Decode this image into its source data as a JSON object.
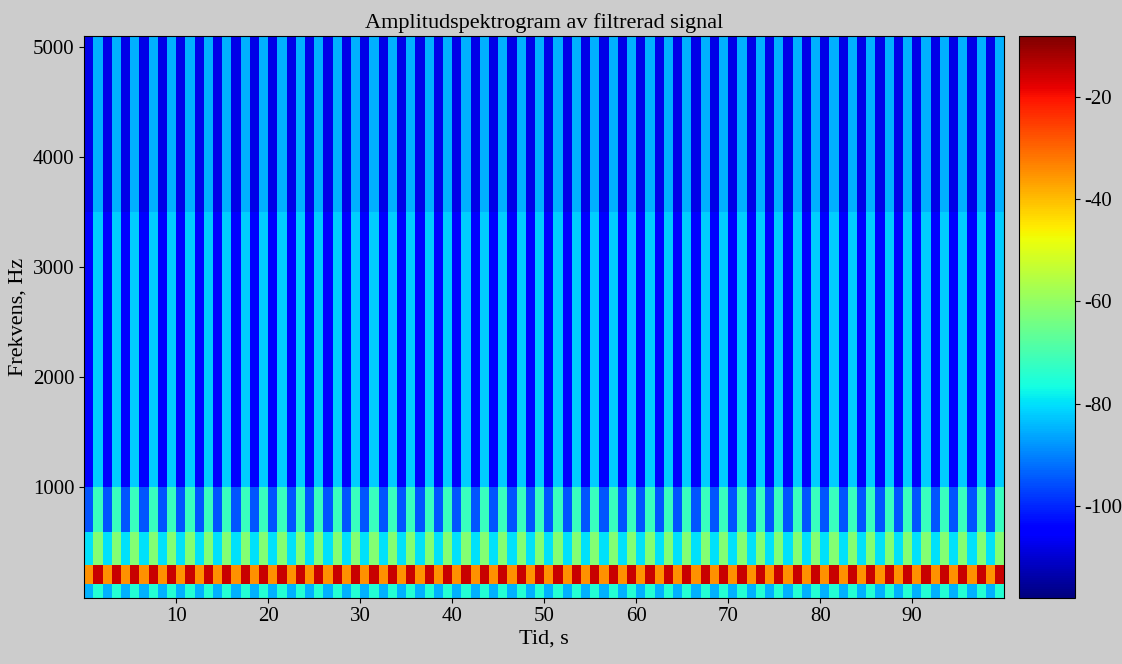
{
  "chart_data": {
    "type": "heatmap",
    "title": "Amplitudspektrogram av filtrerad signal",
    "xlabel": "Tid, s",
    "ylabel": "Frekvens, Hz",
    "xlim": [
      0,
      100
    ],
    "xticks": [
      10,
      20,
      30,
      40,
      50,
      60,
      70,
      80,
      90
    ],
    "ylim": [
      0,
      5100
    ],
    "yticks": [
      1000,
      2000,
      3000,
      4000,
      5000
    ],
    "clim": [
      -118,
      -8
    ],
    "cticks": [
      -100,
      -80,
      -60,
      -40,
      -20
    ],
    "x_edges": [
      0,
      1,
      2,
      3,
      4,
      5,
      6,
      7,
      8,
      9,
      10,
      11,
      12,
      13,
      14,
      15,
      16,
      17,
      18,
      19,
      20,
      21,
      22,
      23,
      24,
      25,
      26,
      27,
      28,
      29,
      30,
      31,
      32,
      33,
      34,
      35,
      36,
      37,
      38,
      39,
      40,
      41,
      42,
      43,
      44,
      45,
      46,
      47,
      48,
      49,
      50,
      51,
      52,
      53,
      54,
      55,
      56,
      57,
      58,
      59,
      60,
      61,
      62,
      63,
      64,
      65,
      66,
      67,
      68,
      69,
      70,
      71,
      72,
      73,
      74,
      75,
      76,
      77,
      78,
      79,
      80,
      81,
      82,
      83,
      84,
      85,
      86,
      87,
      88,
      89,
      90,
      91,
      92,
      93,
      94,
      95,
      96,
      97,
      98,
      99,
      100
    ],
    "y_edges": [
      0,
      125,
      300,
      600,
      1000,
      1500,
      2000,
      2500,
      3000,
      3500,
      4000,
      4500,
      5000,
      5100
    ],
    "cells": [
      [
        -85,
        -75,
        -85,
        -75,
        -85,
        -75,
        -85,
        -75,
        -85,
        -75,
        -85,
        -75,
        -85,
        -75,
        -85,
        -75,
        -85,
        -75,
        -85,
        -75,
        -85,
        -75,
        -85,
        -75,
        -85,
        -75,
        -85,
        -75,
        -85,
        -75,
        -85,
        -75,
        -85,
        -75,
        -85,
        -75,
        -85,
        -75,
        -85,
        -75,
        -85,
        -75,
        -85,
        -75,
        -85,
        -75,
        -85,
        -75,
        -85,
        -75,
        -85,
        -75,
        -85,
        -75,
        -85,
        -75,
        -85,
        -75,
        -85,
        -75,
        -85,
        -75,
        -85,
        -75,
        -85,
        -75,
        -85,
        -75,
        -85,
        -75,
        -85,
        -75,
        -85,
        -75,
        -85,
        -75,
        -85,
        -75,
        -85,
        -75,
        -85,
        -75,
        -85,
        -75,
        -85,
        -75,
        -85,
        -75,
        -85,
        -75,
        -85,
        -75,
        -85,
        -75,
        -85,
        -75,
        -85,
        -75,
        -85,
        -75
      ],
      [
        -35,
        -15,
        -35,
        -15,
        -35,
        -15,
        -35,
        -15,
        -35,
        -15,
        -35,
        -15,
        -35,
        -15,
        -35,
        -15,
        -35,
        -15,
        -35,
        -15,
        -35,
        -15,
        -35,
        -15,
        -35,
        -15,
        -35,
        -15,
        -35,
        -15,
        -35,
        -15,
        -35,
        -15,
        -35,
        -15,
        -35,
        -15,
        -35,
        -15,
        -35,
        -15,
        -35,
        -15,
        -35,
        -15,
        -35,
        -15,
        -35,
        -15,
        -35,
        -15,
        -35,
        -15,
        -35,
        -15,
        -35,
        -15,
        -35,
        -15,
        -35,
        -15,
        -35,
        -15,
        -35,
        -15,
        -35,
        -15,
        -35,
        -15,
        -35,
        -15,
        -35,
        -15,
        -35,
        -15,
        -35,
        -15,
        -35,
        -15,
        -35,
        -15,
        -35,
        -15,
        -35,
        -15,
        -35,
        -15,
        -35,
        -15,
        -35,
        -15,
        -35,
        -15,
        -35,
        -15,
        -35,
        -15,
        -35,
        -15
      ],
      [
        -80,
        -62,
        -80,
        -62,
        -80,
        -62,
        -80,
        -62,
        -80,
        -62,
        -80,
        -62,
        -80,
        -62,
        -80,
        -62,
        -80,
        -62,
        -80,
        -62,
        -80,
        -62,
        -80,
        -62,
        -80,
        -62,
        -80,
        -62,
        -80,
        -62,
        -80,
        -62,
        -80,
        -62,
        -80,
        -62,
        -80,
        -62,
        -80,
        -62,
        -80,
        -62,
        -80,
        -62,
        -80,
        -62,
        -80,
        -62,
        -80,
        -62,
        -80,
        -62,
        -80,
        -62,
        -80,
        -62,
        -80,
        -62,
        -80,
        -62,
        -80,
        -62,
        -80,
        -62,
        -80,
        -62,
        -80,
        -62,
        -80,
        -62,
        -80,
        -62,
        -80,
        -62,
        -80,
        -62,
        -80,
        -62,
        -80,
        -62,
        -80,
        -62,
        -80,
        -62,
        -80,
        -62,
        -80,
        -62,
        -80,
        -62,
        -80,
        -62,
        -80,
        -62,
        -80,
        -62,
        -80,
        -62,
        -80,
        -62
      ],
      [
        -95,
        -72,
        -95,
        -72,
        -95,
        -72,
        -95,
        -72,
        -95,
        -72,
        -95,
        -72,
        -95,
        -72,
        -95,
        -72,
        -95,
        -72,
        -95,
        -72,
        -95,
        -72,
        -95,
        -72,
        -95,
        -72,
        -95,
        -72,
        -95,
        -72,
        -95,
        -72,
        -95,
        -72,
        -95,
        -72,
        -95,
        -72,
        -95,
        -72,
        -95,
        -72,
        -95,
        -72,
        -95,
        -72,
        -95,
        -72,
        -95,
        -72,
        -95,
        -72,
        -95,
        -72,
        -95,
        -72,
        -95,
        -72,
        -95,
        -72,
        -95,
        -72,
        -95,
        -72,
        -95,
        -72,
        -95,
        -72,
        -95,
        -72,
        -95,
        -72,
        -95,
        -72,
        -95,
        -72,
        -95,
        -72,
        -95,
        -72,
        -95,
        -72,
        -95,
        -72,
        -95,
        -72,
        -95,
        -72,
        -95,
        -72,
        -95,
        -72,
        -95,
        -72,
        -95,
        -72,
        -95,
        -72,
        -95,
        -72
      ],
      [
        -105,
        -82,
        -105,
        -82,
        -105,
        -82,
        -105,
        -82,
        -105,
        -82,
        -105,
        -82,
        -105,
        -82,
        -105,
        -82,
        -105,
        -82,
        -105,
        -82,
        -105,
        -82,
        -105,
        -82,
        -105,
        -82,
        -105,
        -82,
        -105,
        -82,
        -105,
        -82,
        -105,
        -82,
        -105,
        -82,
        -105,
        -82,
        -105,
        -82,
        -105,
        -82,
        -105,
        -82,
        -105,
        -82,
        -105,
        -82,
        -105,
        -82,
        -105,
        -82,
        -105,
        -82,
        -105,
        -82,
        -105,
        -82,
        -105,
        -82,
        -105,
        -82,
        -105,
        -82,
        -105,
        -82,
        -105,
        -82,
        -105,
        -82,
        -105,
        -82,
        -105,
        -82,
        -105,
        -82,
        -105,
        -82,
        -105,
        -82,
        -105,
        -82,
        -105,
        -82,
        -105,
        -82,
        -105,
        -82,
        -105,
        -82,
        -105,
        -82,
        -105,
        -82,
        -105,
        -82,
        -105,
        -82,
        -105,
        -82
      ],
      [
        -105,
        -82,
        -105,
        -82,
        -105,
        -82,
        -105,
        -82,
        -105,
        -82,
        -105,
        -82,
        -105,
        -82,
        -105,
        -82,
        -105,
        -82,
        -105,
        -82,
        -105,
        -82,
        -105,
        -82,
        -105,
        -82,
        -105,
        -82,
        -105,
        -82,
        -105,
        -82,
        -105,
        -82,
        -105,
        -82,
        -105,
        -82,
        -105,
        -82,
        -105,
        -82,
        -105,
        -82,
        -105,
        -82,
        -105,
        -82,
        -105,
        -82,
        -105,
        -82,
        -105,
        -82,
        -105,
        -82,
        -105,
        -82,
        -105,
        -82,
        -105,
        -82,
        -105,
        -82,
        -105,
        -82,
        -105,
        -82,
        -105,
        -82,
        -105,
        -82,
        -105,
        -82,
        -105,
        -82,
        -105,
        -82,
        -105,
        -82,
        -105,
        -82,
        -105,
        -82,
        -105,
        -82,
        -105,
        -82,
        -105,
        -82,
        -105,
        -82,
        -105,
        -82,
        -105,
        -82,
        -105,
        -82,
        -105,
        -82
      ],
      [
        -105,
        -82,
        -105,
        -82,
        -105,
        -82,
        -105,
        -82,
        -105,
        -82,
        -105,
        -82,
        -105,
        -82,
        -105,
        -82,
        -105,
        -82,
        -105,
        -82,
        -105,
        -82,
        -105,
        -82,
        -105,
        -82,
        -105,
        -82,
        -105,
        -82,
        -105,
        -82,
        -105,
        -82,
        -105,
        -82,
        -105,
        -82,
        -105,
        -82,
        -105,
        -82,
        -105,
        -82,
        -105,
        -82,
        -105,
        -82,
        -105,
        -82,
        -105,
        -82,
        -105,
        -82,
        -105,
        -82,
        -105,
        -82,
        -105,
        -82,
        -105,
        -82,
        -105,
        -82,
        -105,
        -82,
        -105,
        -82,
        -105,
        -82,
        -105,
        -82,
        -105,
        -82,
        -105,
        -82,
        -105,
        -82,
        -105,
        -82,
        -105,
        -82,
        -105,
        -82,
        -105,
        -82,
        -105,
        -82,
        -105,
        -82,
        -105,
        -82,
        -105,
        -82,
        -105,
        -82,
        -105,
        -82,
        -105,
        -82
      ],
      [
        -105,
        -82,
        -105,
        -82,
        -105,
        -82,
        -105,
        -82,
        -105,
        -82,
        -105,
        -82,
        -105,
        -82,
        -105,
        -82,
        -105,
        -82,
        -105,
        -82,
        -105,
        -82,
        -105,
        -82,
        -105,
        -82,
        -105,
        -82,
        -105,
        -82,
        -105,
        -82,
        -105,
        -82,
        -105,
        -82,
        -105,
        -82,
        -105,
        -82,
        -105,
        -82,
        -105,
        -82,
        -105,
        -82,
        -105,
        -82,
        -105,
        -82,
        -105,
        -82,
        -105,
        -82,
        -105,
        -82,
        -105,
        -82,
        -105,
        -82,
        -105,
        -82,
        -105,
        -82,
        -105,
        -82,
        -105,
        -82,
        -105,
        -82,
        -105,
        -82,
        -105,
        -82,
        -105,
        -82,
        -105,
        -82,
        -105,
        -82,
        -105,
        -82,
        -105,
        -82,
        -105,
        -82,
        -105,
        -82,
        -105,
        -82,
        -105,
        -82,
        -105,
        -82,
        -105,
        -82,
        -105,
        -82,
        -105,
        -82
      ],
      [
        -105,
        -82,
        -105,
        -82,
        -105,
        -82,
        -105,
        -82,
        -105,
        -82,
        -105,
        -82,
        -105,
        -82,
        -105,
        -82,
        -105,
        -82,
        -105,
        -82,
        -105,
        -82,
        -105,
        -82,
        -105,
        -82,
        -105,
        -82,
        -105,
        -82,
        -105,
        -82,
        -105,
        -82,
        -105,
        -82,
        -105,
        -82,
        -105,
        -82,
        -105,
        -82,
        -105,
        -82,
        -105,
        -82,
        -105,
        -82,
        -105,
        -82,
        -105,
        -82,
        -105,
        -82,
        -105,
        -82,
        -105,
        -82,
        -105,
        -82,
        -105,
        -82,
        -105,
        -82,
        -105,
        -82,
        -105,
        -82,
        -105,
        -82,
        -105,
        -82,
        -105,
        -82,
        -105,
        -82,
        -105,
        -82,
        -105,
        -82,
        -105,
        -82,
        -105,
        -82,
        -105,
        -82,
        -105,
        -82,
        -105,
        -82,
        -105,
        -82,
        -105,
        -82,
        -105,
        -82,
        -105,
        -82,
        -105,
        -82
      ],
      [
        -108,
        -85,
        -108,
        -85,
        -108,
        -85,
        -108,
        -85,
        -108,
        -85,
        -108,
        -85,
        -108,
        -85,
        -108,
        -85,
        -108,
        -85,
        -108,
        -85,
        -108,
        -85,
        -108,
        -85,
        -108,
        -85,
        -108,
        -85,
        -108,
        -85,
        -108,
        -85,
        -108,
        -85,
        -108,
        -85,
        -108,
        -85,
        -108,
        -85,
        -108,
        -85,
        -108,
        -85,
        -108,
        -85,
        -108,
        -85,
        -108,
        -85,
        -108,
        -85,
        -108,
        -85,
        -108,
        -85,
        -108,
        -85,
        -108,
        -85,
        -108,
        -85,
        -108,
        -85,
        -108,
        -85,
        -108,
        -85,
        -108,
        -85,
        -108,
        -85,
        -108,
        -85,
        -108,
        -85,
        -108,
        -85,
        -108,
        -85,
        -108,
        -85,
        -108,
        -85,
        -108,
        -85,
        -108,
        -85,
        -108,
        -85,
        -108,
        -85,
        -108,
        -85,
        -108,
        -85,
        -108,
        -85,
        -108,
        -85
      ],
      [
        -108,
        -85,
        -108,
        -85,
        -108,
        -85,
        -108,
        -85,
        -108,
        -85,
        -108,
        -85,
        -108,
        -85,
        -108,
        -85,
        -108,
        -85,
        -108,
        -85,
        -108,
        -85,
        -108,
        -85,
        -108,
        -85,
        -108,
        -85,
        -108,
        -85,
        -108,
        -85,
        -108,
        -85,
        -108,
        -85,
        -108,
        -85,
        -108,
        -85,
        -108,
        -85,
        -108,
        -85,
        -108,
        -85,
        -108,
        -85,
        -108,
        -85,
        -108,
        -85,
        -108,
        -85,
        -108,
        -85,
        -108,
        -85,
        -108,
        -85,
        -108,
        -85,
        -108,
        -85,
        -108,
        -85,
        -108,
        -85,
        -108,
        -85,
        -108,
        -85,
        -108,
        -85,
        -108,
        -85,
        -108,
        -85,
        -108,
        -85,
        -108,
        -85,
        -108,
        -85,
        -108,
        -85,
        -108,
        -85,
        -108,
        -85,
        -108,
        -85,
        -108,
        -85,
        -108,
        -85,
        -108,
        -85,
        -108,
        -85
      ],
      [
        -108,
        -85,
        -108,
        -85,
        -108,
        -85,
        -108,
        -85,
        -108,
        -85,
        -108,
        -85,
        -108,
        -85,
        -108,
        -85,
        -108,
        -85,
        -108,
        -85,
        -108,
        -85,
        -108,
        -85,
        -108,
        -85,
        -108,
        -85,
        -108,
        -85,
        -108,
        -85,
        -108,
        -85,
        -108,
        -85,
        -108,
        -85,
        -108,
        -85,
        -108,
        -85,
        -108,
        -85,
        -108,
        -85,
        -108,
        -85,
        -108,
        -85,
        -108,
        -85,
        -108,
        -85,
        -108,
        -85,
        -108,
        -85,
        -108,
        -85,
        -108,
        -85,
        -108,
        -85,
        -108,
        -85,
        -108,
        -85,
        -108,
        -85,
        -108,
        -85,
        -108,
        -85,
        -108,
        -85,
        -108,
        -85,
        -108,
        -85,
        -108,
        -85,
        -108,
        -85,
        -108,
        -85,
        -108,
        -85,
        -108,
        -85,
        -108,
        -85,
        -108,
        -85,
        -108,
        -85,
        -108,
        -85,
        -108,
        -85
      ],
      [
        -108,
        -85,
        -108,
        -85,
        -108,
        -85,
        -108,
        -85,
        -108,
        -85,
        -108,
        -85,
        -108,
        -85,
        -108,
        -85,
        -108,
        -85,
        -108,
        -85,
        -108,
        -85,
        -108,
        -85,
        -108,
        -85,
        -108,
        -85,
        -108,
        -85,
        -108,
        -85,
        -108,
        -85,
        -108,
        -85,
        -108,
        -85,
        -108,
        -85,
        -108,
        -85,
        -108,
        -85,
        -108,
        -85,
        -108,
        -85,
        -108,
        -85,
        -108,
        -85,
        -108,
        -85,
        -108,
        -85,
        -108,
        -85,
        -108,
        -85,
        -108,
        -85,
        -108,
        -85,
        -108,
        -85,
        -108,
        -85,
        -108,
        -85,
        -108,
        -85,
        -108,
        -85,
        -108,
        -85,
        -108,
        -85,
        -108,
        -85,
        -108,
        -85,
        -108,
        -85,
        -108,
        -85,
        -108,
        -85,
        -108,
        -85,
        -108,
        -85,
        -108,
        -85,
        -108,
        -85,
        -108,
        -85,
        -108,
        -85
      ]
    ]
  }
}
